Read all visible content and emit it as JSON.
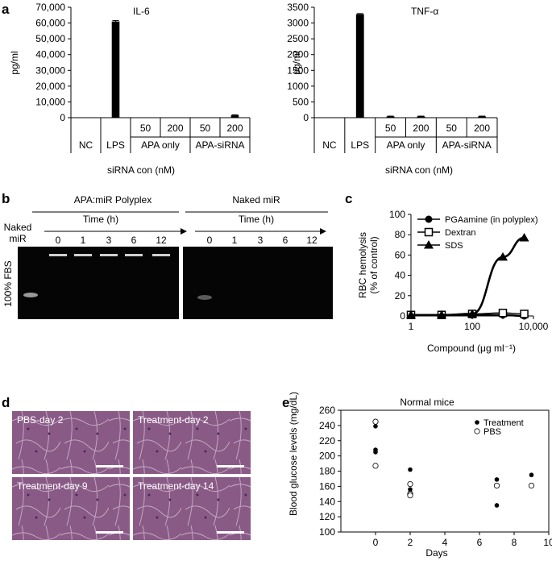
{
  "panels": {
    "a": "a",
    "b": "b",
    "c": "c",
    "d": "d",
    "e": "e"
  },
  "chart_data": [
    {
      "id": "a-il6",
      "type": "bar",
      "title": "IL-6",
      "ylabel": "pg/ml",
      "xlabel": "siRNA con (nM)",
      "ylim": [
        0,
        70000
      ],
      "yticks": [
        "0",
        "10,000",
        "20,000",
        "30,000",
        "40,000",
        "50,000",
        "60,000",
        "70,000"
      ],
      "ytick_values": [
        0,
        10000,
        20000,
        30000,
        40000,
        50000,
        60000,
        70000
      ],
      "categories": [
        "NC",
        "LPS",
        "50",
        "200",
        "50",
        "200"
      ],
      "group_labels": [
        "NC",
        "LPS",
        "APA only",
        "APA-siRNA"
      ],
      "values": [
        0,
        61000,
        0,
        0,
        0,
        1500
      ],
      "errors": [
        0,
        600,
        0,
        0,
        0,
        300
      ],
      "color": "#000000"
    },
    {
      "id": "a-tnf",
      "type": "bar",
      "title": "TNF-α",
      "ylabel": "pg/ml",
      "xlabel": "siRNA con (nM)",
      "ylim": [
        0,
        3500
      ],
      "yticks": [
        "0",
        "500",
        "1000",
        "1500",
        "2000",
        "2500",
        "3000",
        "3500"
      ],
      "ytick_values": [
        0,
        500,
        1000,
        1500,
        2000,
        2500,
        3000,
        3500
      ],
      "categories": [
        "NC",
        "LPS",
        "50",
        "200",
        "50",
        "200"
      ],
      "group_labels": [
        "NC",
        "LPS",
        "APA only",
        "APA-siRNA"
      ],
      "values": [
        5,
        3280,
        40,
        40,
        0,
        40
      ],
      "errors": [
        0,
        20,
        10,
        10,
        0,
        10
      ],
      "color": "#000000"
    },
    {
      "id": "c-hemolysis",
      "type": "line",
      "ylabel_lines": [
        "RBC hemolysis",
        "(% of control)"
      ],
      "xlabel": "Compound (μg ml⁻¹)",
      "xscale": "log",
      "xlim": [
        1,
        10000
      ],
      "ylim": [
        0,
        100
      ],
      "xticks": [
        "1",
        "100",
        "10,000"
      ],
      "xtick_values": [
        1,
        100,
        10000
      ],
      "yticks": [
        "0",
        "20",
        "40",
        "60",
        "80",
        "100"
      ],
      "ytick_values": [
        0,
        20,
        40,
        60,
        80,
        100
      ],
      "legend_position": "top-right",
      "series": [
        {
          "name": "PGAamine (in polyplex)",
          "marker": "circle-filled",
          "x": [
            1,
            10,
            100,
            1000,
            5000
          ],
          "y": [
            1,
            1,
            1,
            1,
            0
          ]
        },
        {
          "name": "Dextran",
          "marker": "square-open",
          "x": [
            1,
            10,
            100,
            1000,
            5000
          ],
          "y": [
            1,
            1,
            2,
            3,
            2
          ]
        },
        {
          "name": "SDS",
          "marker": "triangle-filled",
          "x": [
            1,
            10,
            100,
            1000,
            5000
          ],
          "y": [
            1,
            1,
            2,
            58,
            77
          ]
        }
      ]
    },
    {
      "id": "e-glucose",
      "type": "scatter",
      "title": "Normal mice",
      "ylabel": "Blood glucose levels (mg/dL)",
      "xlabel": "Days",
      "xlim": [
        -2,
        10
      ],
      "ylim": [
        100,
        260
      ],
      "xticks": [
        "0",
        "2",
        "4",
        "6",
        "8",
        "10"
      ],
      "xtick_values": [
        0,
        2,
        4,
        6,
        8,
        10
      ],
      "yticks": [
        "100",
        "120",
        "140",
        "160",
        "180",
        "200",
        "220",
        "240",
        "260"
      ],
      "ytick_values": [
        100,
        120,
        140,
        160,
        180,
        200,
        220,
        240,
        260
      ],
      "legend_position": "top-right",
      "series": [
        {
          "name": "Treatment",
          "marker": "circle-filled",
          "x": [
            0,
            0,
            0,
            2,
            2,
            2,
            7,
            7,
            9
          ],
          "y": [
            239,
            208,
            205,
            182,
            156,
            152,
            169,
            135,
            175
          ]
        },
        {
          "name": "PBS",
          "marker": "circle-open",
          "x": [
            0,
            0,
            2,
            2,
            2,
            7,
            9
          ],
          "y": [
            245,
            187,
            163,
            150,
            148,
            161,
            161
          ]
        }
      ]
    }
  ],
  "gel": {
    "left_header": "APA:miR Polyplex",
    "right_header": "Naked miR",
    "time_label": "Time (h)",
    "left_times": [
      "0",
      "1",
      "3",
      "6",
      "12"
    ],
    "right_times": [
      "0",
      "1",
      "3",
      "6",
      "12"
    ],
    "naked_label_line1": "Naked",
    "naked_label_line2": "miR",
    "side_label": "100% FBS"
  },
  "histology": [
    {
      "label": "PBS-day 2"
    },
    {
      "label": "Treatment-day 2"
    },
    {
      "label": "Treatment-day 9"
    },
    {
      "label": "Treatment-day 14"
    }
  ]
}
